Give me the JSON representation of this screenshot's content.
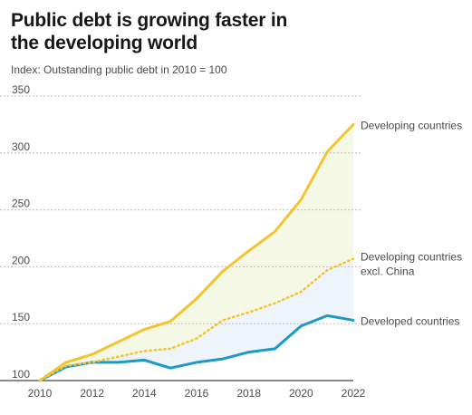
{
  "chart_data": {
    "type": "line",
    "title": "Public debt is growing faster in the developing world",
    "subtitle": "Index: Outstanding public debt in 2010 = 100",
    "x": [
      2010,
      2011,
      2012,
      2013,
      2014,
      2015,
      2016,
      2017,
      2018,
      2019,
      2020,
      2021,
      2022
    ],
    "x_ticks": [
      2010,
      2012,
      2014,
      2016,
      2018,
      2020,
      2022
    ],
    "y_ticks": [
      100,
      150,
      200,
      250,
      300,
      350
    ],
    "xlim": [
      2010,
      2022
    ],
    "ylim": [
      100,
      350
    ],
    "grid": true,
    "series": [
      {
        "name": "Developing countries",
        "values": [
          100,
          116,
          123,
          134,
          145,
          152,
          172,
          196,
          214,
          231,
          259,
          301,
          325
        ],
        "color": "#f2c430",
        "style": "solid"
      },
      {
        "name": "Developing countries excl. China",
        "label_lines": [
          "Developing countries",
          "excl. China"
        ],
        "values": [
          100,
          113,
          116,
          121,
          126,
          128,
          137,
          153,
          160,
          168,
          178,
          197,
          207
        ],
        "color": "#f2c430",
        "style": "dotted"
      },
      {
        "name": "Developed countries",
        "values": [
          100,
          112,
          116,
          116,
          118,
          111,
          116,
          119,
          125,
          128,
          148,
          157,
          153
        ],
        "color": "#1b9ac8",
        "style": "solid"
      }
    ]
  }
}
